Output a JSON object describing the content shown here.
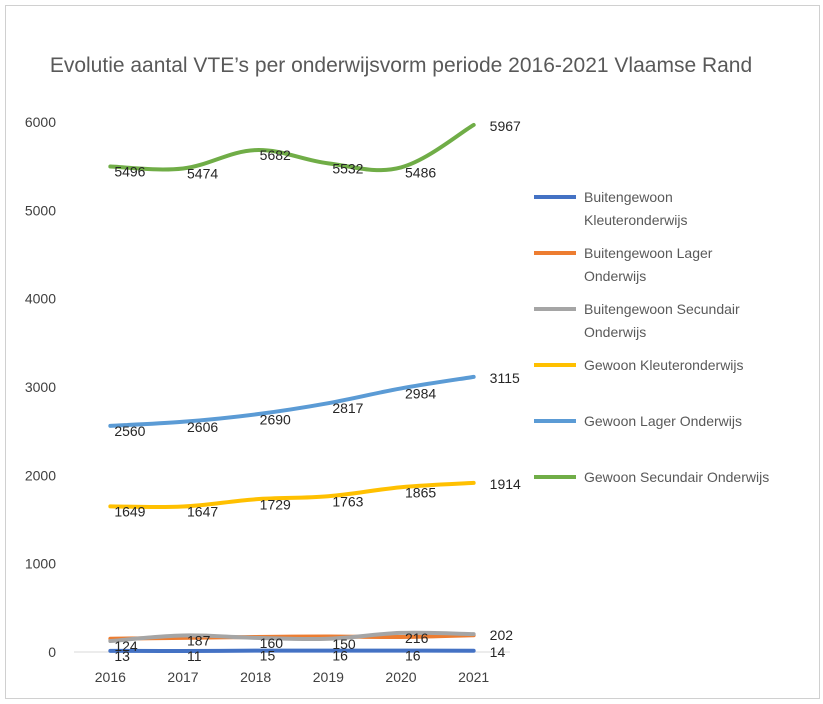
{
  "chart_data": {
    "type": "line",
    "title": "Evolutie aantal VTE’s per onderwijsvorm periode 2016-2021 Vlaamse Rand",
    "xlabel": "",
    "ylabel": "",
    "categories": [
      "2016",
      "2017",
      "2018",
      "2019",
      "2020",
      "2021"
    ],
    "ylim": [
      0,
      6000
    ],
    "yticks": [
      0,
      1000,
      2000,
      3000,
      4000,
      5000,
      6000
    ],
    "legend_position": "right",
    "series": [
      {
        "name": "Buitengewoon Kleuteronderwijs",
        "legend_lines": [
          "Buitengewoon",
          "Kleuteronderwijs"
        ],
        "color": "#4472c4",
        "values": [
          13,
          11,
          15,
          16,
          16,
          14
        ],
        "labels": [
          "13",
          "11",
          "15",
          "16",
          "16",
          "14"
        ]
      },
      {
        "name": "Buitengewoon Lager Onderwijs",
        "legend_lines": [
          "Buitengewoon Lager",
          "Onderwijs"
        ],
        "color": "#ed7d31",
        "values": [
          150,
          160,
          170,
          175,
          170,
          190
        ],
        "labels": []
      },
      {
        "name": "Buitengewoon Secundair Onderwijs",
        "legend_lines": [
          "Buitengewoon Secundair",
          "Onderwijs"
        ],
        "color": "#a5a5a5",
        "values": [
          124,
          187,
          160,
          150,
          216,
          202
        ],
        "labels": [
          "124",
          "187",
          "160",
          "150",
          "216",
          "202"
        ]
      },
      {
        "name": "Gewoon Kleuteronderwijs",
        "legend_lines": [
          "Gewoon Kleuteronderwijs"
        ],
        "color": "#ffc000",
        "values": [
          1649,
          1647,
          1729,
          1763,
          1865,
          1914
        ],
        "labels": [
          "1649",
          "1647",
          "1729",
          "1763",
          "1865",
          "1914"
        ]
      },
      {
        "name": "Gewoon Lager Onderwijs",
        "legend_lines": [
          "Gewoon Lager Onderwijs"
        ],
        "color": "#5b9bd5",
        "values": [
          2560,
          2606,
          2690,
          2817,
          2984,
          3115
        ],
        "labels": [
          "2560",
          "2606",
          "2690",
          "2817",
          "2984",
          "3115"
        ]
      },
      {
        "name": "Gewoon Secundair Onderwijs",
        "legend_lines": [
          "Gewoon Secundair Onderwijs"
        ],
        "color": "#70ad47",
        "values": [
          5496,
          5474,
          5682,
          5532,
          5486,
          5967
        ],
        "labels": [
          "5496",
          "5474",
          "5682",
          "5532",
          "5486",
          "5967"
        ]
      }
    ]
  }
}
